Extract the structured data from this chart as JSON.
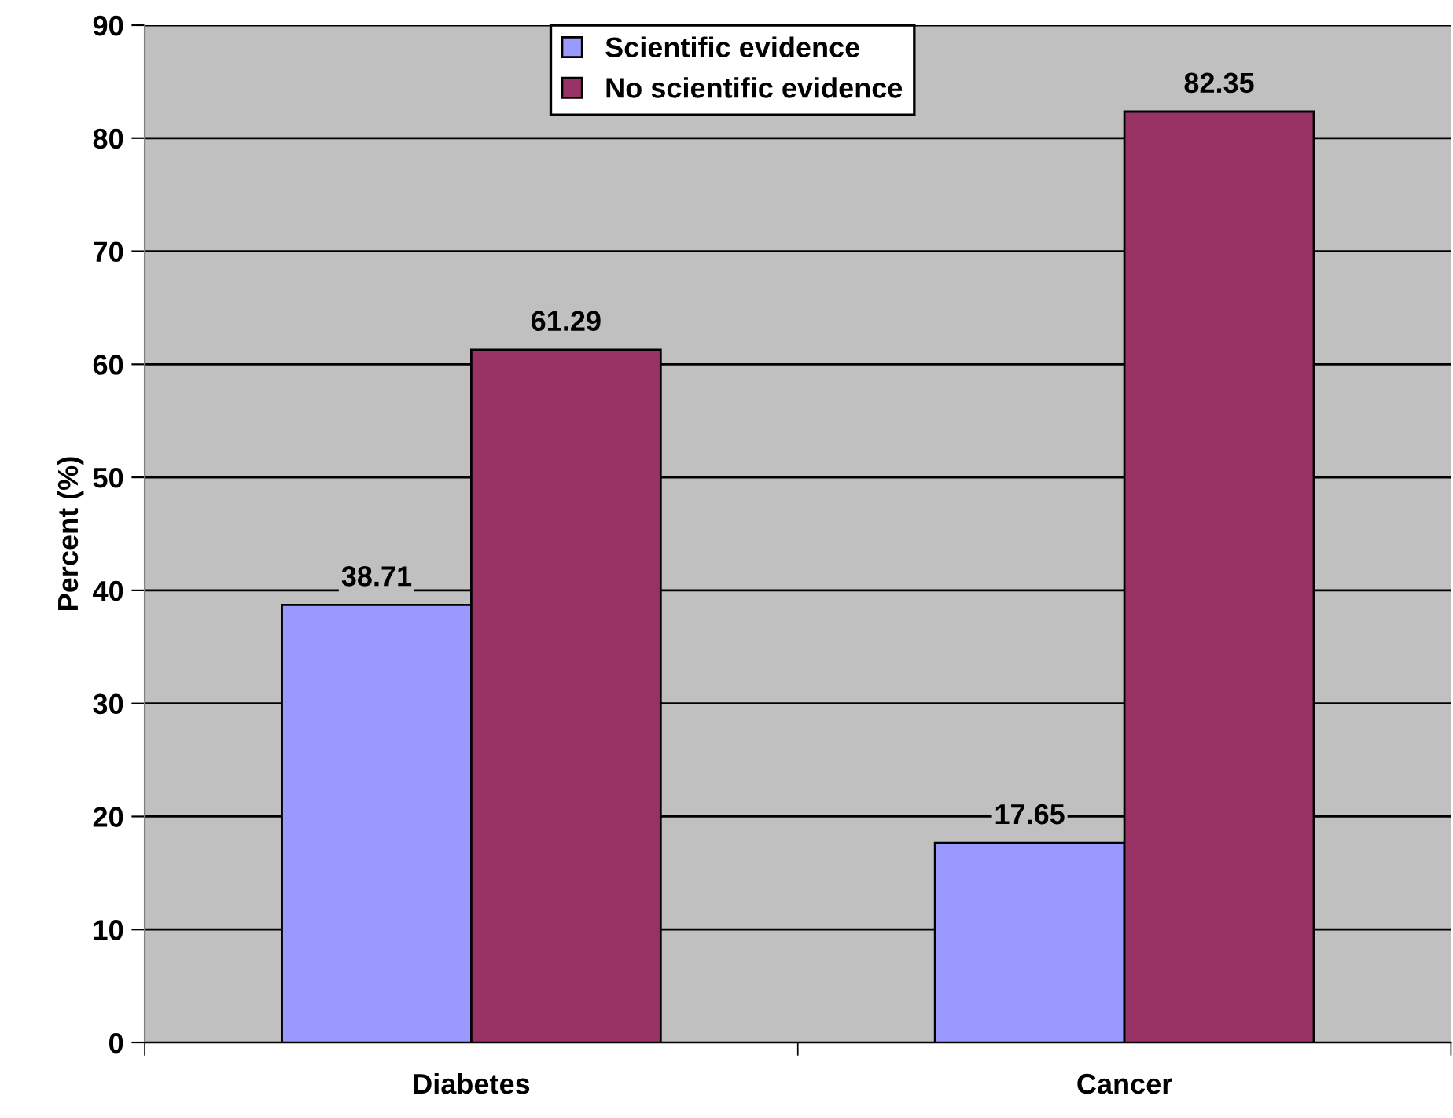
{
  "chart_data": {
    "type": "bar",
    "ylabel": "Percent (%)",
    "categories": [
      "Diabetes",
      "Cancer"
    ],
    "series": [
      {
        "name": "Scientific evidence",
        "color": "#9999ff",
        "values": [
          38.71,
          17.65
        ]
      },
      {
        "name": "No scientific evidence",
        "color": "#993366",
        "values": [
          61.29,
          82.35
        ]
      }
    ],
    "ylim": [
      0,
      90
    ],
    "yticks": [
      0,
      10,
      20,
      30,
      40,
      50,
      60,
      70,
      80,
      90
    ],
    "grid": "y",
    "legend": "top",
    "data_labels": true
  }
}
